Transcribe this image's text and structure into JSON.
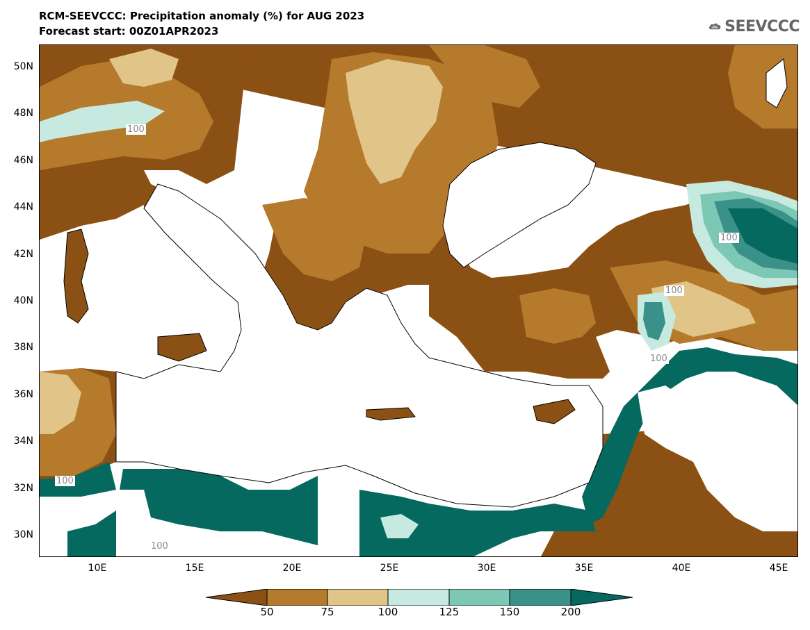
{
  "header": {
    "title": "RCM-SEEVCCC: Precipitation anomaly (%) for AUG 2023",
    "subtitle": "Forecast start: 00Z01APR2023"
  },
  "logo": {
    "text": "SEEVCCC",
    "icon": "cloud-icon"
  },
  "map": {
    "lat_labels": [
      "50N",
      "48N",
      "46N",
      "44N",
      "42N",
      "40N",
      "38N",
      "36N",
      "34N",
      "32N",
      "30N"
    ],
    "lon_labels": [
      "10E",
      "15E",
      "20E",
      "25E",
      "30E",
      "35E",
      "40E",
      "45E"
    ],
    "contour_labels": [
      "100",
      "100",
      "100",
      "100",
      "100",
      "100"
    ]
  },
  "colorbar": {
    "labels": [
      "50",
      "75",
      "100",
      "125",
      "150",
      "200"
    ],
    "colors": [
      "#8b5013",
      "#b57a2c",
      "#e0c488",
      "#c6eadf",
      "#7cc8b5",
      "#3a918a",
      "#05695f"
    ]
  },
  "colors": {
    "dry_strong": "#8b5013",
    "dry": "#b57a2c",
    "dry_light": "#e0c488",
    "wet_light": "#c6eadf",
    "wet": "#7cc8b5",
    "wet_strong": "#3a918a",
    "wet_extreme": "#05695f"
  }
}
